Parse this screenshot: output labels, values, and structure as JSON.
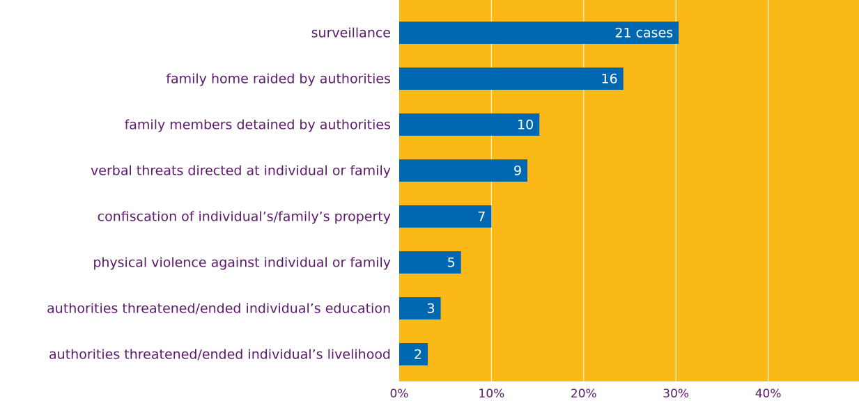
{
  "chart_data": {
    "type": "barh",
    "categories": [
      "surveillance",
      "family home raided by authorities",
      "family members detained by authorities",
      "verbal threats directed at individual or family",
      "confiscation of individual’s/family’s property",
      "physical violence against individual or family",
      "authorities threatened/ended individual’s education",
      "authorities threatened/ended individual’s livelihood"
    ],
    "values": [
      30.3,
      24.3,
      15.2,
      13.9,
      10.0,
      6.7,
      4.5,
      3.1
    ],
    "case_labels": [
      "21 cases",
      "16",
      "10",
      "9",
      "7",
      "5",
      "3",
      "2"
    ],
    "color": "#0068b0",
    "background": "#fbb917",
    "xlim": [
      0,
      50
    ],
    "xticks": [
      {
        "value": 0,
        "label": "0%"
      },
      {
        "value": 10,
        "label": "10%"
      },
      {
        "value": 20,
        "label": "20%"
      },
      {
        "value": 30,
        "label": "30%"
      },
      {
        "value": 40,
        "label": "40%"
      }
    ],
    "grid": true
  }
}
